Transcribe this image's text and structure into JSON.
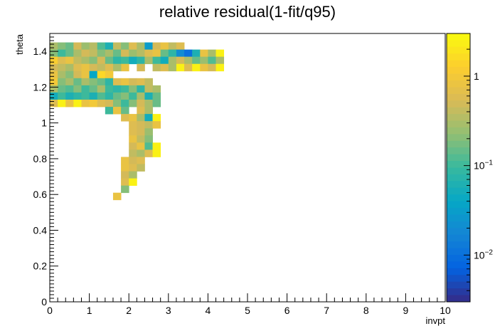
{
  "chart_data": {
    "type": "heatmap",
    "title": "relative residual(1-fit/q95)",
    "xlabel": "invpt",
    "ylabel": "theta",
    "xlim": [
      0,
      10
    ],
    "ylim": [
      0,
      1.5
    ],
    "x_ticks": [
      "0",
      "1",
      "2",
      "3",
      "4",
      "5",
      "6",
      "7",
      "8",
      "9",
      "10"
    ],
    "y_ticks": [
      "0",
      "0.2",
      "0.4",
      "0.6",
      "0.8",
      "1",
      "1.2",
      "1.4"
    ],
    "colorbar": {
      "scale": "log",
      "range": [
        0.003,
        3
      ],
      "ticks": [
        {
          "value": 1,
          "label": "1"
        },
        {
          "value": 0.1,
          "label": "10^-1"
        },
        {
          "value": 0.01,
          "label": "10^-2"
        }
      ],
      "palette": [
        "#352a87",
        "#0363e1",
        "#1485d4",
        "#06a7c6",
        "#38b99e",
        "#92bf73",
        "#d9ba56",
        "#fcce2e",
        "#f9fb0e"
      ]
    },
    "cells": [
      {
        "x": 0.1,
        "y": 1.43,
        "v": 0.3
      },
      {
        "x": 0.3,
        "y": 1.43,
        "v": 0.2
      },
      {
        "x": 0.5,
        "y": 1.43,
        "v": 0.15
      },
      {
        "x": 0.7,
        "y": 1.43,
        "v": 0.5
      },
      {
        "x": 0.9,
        "y": 1.43,
        "v": 0.25
      },
      {
        "x": 1.1,
        "y": 1.43,
        "v": 0.35
      },
      {
        "x": 1.3,
        "y": 1.43,
        "v": 0.12
      },
      {
        "x": 1.5,
        "y": 1.43,
        "v": 0.06
      },
      {
        "x": 1.7,
        "y": 1.43,
        "v": 0.4
      },
      {
        "x": 1.9,
        "y": 1.43,
        "v": 0.2
      },
      {
        "x": 2.1,
        "y": 1.43,
        "v": 0.6
      },
      {
        "x": 2.3,
        "y": 1.43,
        "v": 0.3
      },
      {
        "x": 2.5,
        "y": 1.43,
        "v": 0.03
      },
      {
        "x": 2.7,
        "y": 1.43,
        "v": 0.5
      },
      {
        "x": 2.9,
        "y": 1.43,
        "v": 0.8
      },
      {
        "x": 3.1,
        "y": 1.43,
        "v": 0.4
      },
      {
        "x": 3.3,
        "y": 1.43,
        "v": 0.6
      },
      {
        "x": 0.1,
        "y": 1.39,
        "v": 0.2
      },
      {
        "x": 0.3,
        "y": 1.39,
        "v": 0.1
      },
      {
        "x": 0.5,
        "y": 1.39,
        "v": 0.15
      },
      {
        "x": 0.7,
        "y": 1.39,
        "v": 0.3
      },
      {
        "x": 0.9,
        "y": 1.39,
        "v": 0.5
      },
      {
        "x": 1.1,
        "y": 1.39,
        "v": 0.4
      },
      {
        "x": 1.3,
        "y": 1.39,
        "v": 0.2
      },
      {
        "x": 1.5,
        "y": 1.39,
        "v": 0.3
      },
      {
        "x": 1.7,
        "y": 1.39,
        "v": 0.15
      },
      {
        "x": 1.9,
        "y": 1.39,
        "v": 0.5
      },
      {
        "x": 2.1,
        "y": 1.39,
        "v": 0.25
      },
      {
        "x": 2.3,
        "y": 1.39,
        "v": 0.35
      },
      {
        "x": 2.5,
        "y": 1.39,
        "v": 0.6
      },
      {
        "x": 2.7,
        "y": 1.39,
        "v": 0.8
      },
      {
        "x": 2.9,
        "y": 1.39,
        "v": 0.15
      },
      {
        "x": 3.1,
        "y": 1.39,
        "v": 0.08
      },
      {
        "x": 3.3,
        "y": 1.39,
        "v": 0.02
      },
      {
        "x": 3.5,
        "y": 1.39,
        "v": 0.01
      },
      {
        "x": 3.7,
        "y": 1.39,
        "v": 0.06
      },
      {
        "x": 3.9,
        "y": 1.39,
        "v": 0.8
      },
      {
        "x": 4.1,
        "y": 1.39,
        "v": 0.3
      },
      {
        "x": 4.3,
        "y": 1.39,
        "v": 2.5
      },
      {
        "x": 0.1,
        "y": 1.35,
        "v": 1.2
      },
      {
        "x": 0.3,
        "y": 1.35,
        "v": 0.6
      },
      {
        "x": 0.5,
        "y": 1.35,
        "v": 0.8
      },
      {
        "x": 0.7,
        "y": 1.35,
        "v": 0.4
      },
      {
        "x": 0.9,
        "y": 1.35,
        "v": 0.3
      },
      {
        "x": 1.1,
        "y": 1.35,
        "v": 0.2
      },
      {
        "x": 1.3,
        "y": 1.35,
        "v": 0.5
      },
      {
        "x": 1.5,
        "y": 1.35,
        "v": 0.15
      },
      {
        "x": 1.7,
        "y": 1.35,
        "v": 0.08
      },
      {
        "x": 1.9,
        "y": 1.35,
        "v": 0.1
      },
      {
        "x": 2.1,
        "y": 1.35,
        "v": 0.05
      },
      {
        "x": 2.3,
        "y": 1.35,
        "v": 0.08
      },
      {
        "x": 2.5,
        "y": 1.35,
        "v": 0.3
      },
      {
        "x": 2.7,
        "y": 1.35,
        "v": 0.1
      },
      {
        "x": 2.9,
        "y": 1.35,
        "v": 0.05
      },
      {
        "x": 3.1,
        "y": 1.35,
        "v": 0.3
      },
      {
        "x": 3.3,
        "y": 1.35,
        "v": 0.5
      },
      {
        "x": 3.5,
        "y": 1.35,
        "v": 0.3
      },
      {
        "x": 3.7,
        "y": 1.35,
        "v": 0.15
      },
      {
        "x": 3.9,
        "y": 1.35,
        "v": 0.25
      },
      {
        "x": 4.1,
        "y": 1.35,
        "v": 0.12
      },
      {
        "x": 4.3,
        "y": 1.35,
        "v": 0.3
      },
      {
        "x": 1.9,
        "y": 1.31,
        "v": 0.8
      },
      {
        "x": 2.3,
        "y": 1.31,
        "v": 0.5
      },
      {
        "x": 2.7,
        "y": 1.31,
        "v": 0.4
      },
      {
        "x": 2.9,
        "y": 1.31,
        "v": 0.6
      },
      {
        "x": 3.1,
        "y": 1.31,
        "v": 0.3
      },
      {
        "x": 3.3,
        "y": 1.31,
        "v": 2.5
      },
      {
        "x": 3.5,
        "y": 1.31,
        "v": 0.6
      },
      {
        "x": 3.7,
        "y": 1.31,
        "v": 2.5
      },
      {
        "x": 3.9,
        "y": 1.31,
        "v": 0.8
      },
      {
        "x": 4.1,
        "y": 1.31,
        "v": 0.5
      },
      {
        "x": 4.3,
        "y": 1.31,
        "v": 2.5
      },
      {
        "x": 0.1,
        "y": 1.31,
        "v": 0.5
      },
      {
        "x": 0.3,
        "y": 1.31,
        "v": 0.4
      },
      {
        "x": 0.5,
        "y": 1.31,
        "v": 0.3
      },
      {
        "x": 0.7,
        "y": 1.31,
        "v": 0.6
      },
      {
        "x": 0.9,
        "y": 1.31,
        "v": 0.8
      },
      {
        "x": 1.1,
        "y": 1.31,
        "v": 0.5
      },
      {
        "x": 1.3,
        "y": 1.31,
        "v": 0.4
      },
      {
        "x": 1.5,
        "y": 1.31,
        "v": 0.6
      },
      {
        "x": 1.7,
        "y": 1.31,
        "v": 0.3
      },
      {
        "x": 0.1,
        "y": 1.27,
        "v": 0.8
      },
      {
        "x": 0.3,
        "y": 1.27,
        "v": 0.3
      },
      {
        "x": 0.5,
        "y": 1.27,
        "v": 0.2
      },
      {
        "x": 0.7,
        "y": 1.27,
        "v": 0.5
      },
      {
        "x": 0.9,
        "y": 1.27,
        "v": 0.8
      },
      {
        "x": 1.1,
        "y": 1.27,
        "v": 0.04
      },
      {
        "x": 1.3,
        "y": 1.27,
        "v": 1.5
      },
      {
        "x": 1.5,
        "y": 1.27,
        "v": 1.0
      },
      {
        "x": 0.1,
        "y": 1.23,
        "v": 1.0
      },
      {
        "x": 0.3,
        "y": 1.23,
        "v": 0.2
      },
      {
        "x": 0.5,
        "y": 1.23,
        "v": 0.3
      },
      {
        "x": 0.7,
        "y": 1.23,
        "v": 0.15
      },
      {
        "x": 0.9,
        "y": 1.23,
        "v": 0.3
      },
      {
        "x": 1.1,
        "y": 1.23,
        "v": 0.2
      },
      {
        "x": 1.3,
        "y": 1.23,
        "v": 0.15
      },
      {
        "x": 1.5,
        "y": 1.23,
        "v": 0.08
      },
      {
        "x": 1.7,
        "y": 1.23,
        "v": 0.6
      },
      {
        "x": 1.9,
        "y": 1.23,
        "v": 0.8
      },
      {
        "x": 2.1,
        "y": 1.23,
        "v": 0.5
      },
      {
        "x": 2.3,
        "y": 1.23,
        "v": 0.6
      },
      {
        "x": 2.5,
        "y": 1.23,
        "v": 0.4
      },
      {
        "x": 0.1,
        "y": 1.19,
        "v": 0.3
      },
      {
        "x": 0.3,
        "y": 1.19,
        "v": 0.15
      },
      {
        "x": 0.5,
        "y": 1.19,
        "v": 0.12
      },
      {
        "x": 0.7,
        "y": 1.19,
        "v": 0.2
      },
      {
        "x": 0.9,
        "y": 1.19,
        "v": 0.1
      },
      {
        "x": 1.1,
        "y": 1.19,
        "v": 0.15
      },
      {
        "x": 1.3,
        "y": 1.19,
        "v": 0.3
      },
      {
        "x": 1.5,
        "y": 1.19,
        "v": 0.1
      },
      {
        "x": 1.7,
        "y": 1.19,
        "v": 0.08
      },
      {
        "x": 1.9,
        "y": 1.19,
        "v": 0.1
      },
      {
        "x": 2.1,
        "y": 1.19,
        "v": 0.2
      },
      {
        "x": 2.3,
        "y": 1.19,
        "v": 0.08
      },
      {
        "x": 2.5,
        "y": 1.19,
        "v": 0.4
      },
      {
        "x": 2.7,
        "y": 1.19,
        "v": 0.3
      },
      {
        "x": 0.1,
        "y": 1.15,
        "v": 0.05
      },
      {
        "x": 0.3,
        "y": 1.15,
        "v": 0.1
      },
      {
        "x": 0.5,
        "y": 1.15,
        "v": 0.06
      },
      {
        "x": 0.7,
        "y": 1.15,
        "v": 0.08
      },
      {
        "x": 0.9,
        "y": 1.15,
        "v": 0.1
      },
      {
        "x": 1.1,
        "y": 1.15,
        "v": 0.06
      },
      {
        "x": 1.3,
        "y": 1.15,
        "v": 0.12
      },
      {
        "x": 1.5,
        "y": 1.15,
        "v": 0.08
      },
      {
        "x": 1.7,
        "y": 1.15,
        "v": 0.15
      },
      {
        "x": 1.9,
        "y": 1.15,
        "v": 0.2
      },
      {
        "x": 2.1,
        "y": 1.15,
        "v": 0.1
      },
      {
        "x": 2.3,
        "y": 1.15,
        "v": 0.3
      },
      {
        "x": 2.5,
        "y": 1.15,
        "v": 0.06
      },
      {
        "x": 2.7,
        "y": 1.15,
        "v": 0.15
      },
      {
        "x": 0.1,
        "y": 1.11,
        "v": 0.6
      },
      {
        "x": 0.3,
        "y": 1.11,
        "v": 2.5
      },
      {
        "x": 0.5,
        "y": 1.11,
        "v": 0.8
      },
      {
        "x": 0.7,
        "y": 1.11,
        "v": 2.5
      },
      {
        "x": 0.9,
        "y": 1.11,
        "v": 0.8
      },
      {
        "x": 1.1,
        "y": 1.11,
        "v": 1.0
      },
      {
        "x": 1.3,
        "y": 1.11,
        "v": 0.6
      },
      {
        "x": 1.5,
        "y": 1.11,
        "v": 0.5
      },
      {
        "x": 1.7,
        "y": 1.11,
        "v": 0.2
      },
      {
        "x": 1.9,
        "y": 1.11,
        "v": 0.1
      },
      {
        "x": 2.1,
        "y": 1.11,
        "v": 0.2
      },
      {
        "x": 2.3,
        "y": 1.11,
        "v": 0.5
      },
      {
        "x": 2.5,
        "y": 1.11,
        "v": 0.3
      },
      {
        "x": 2.7,
        "y": 1.11,
        "v": 0.15
      },
      {
        "x": 1.5,
        "y": 1.07,
        "v": 0.1
      },
      {
        "x": 1.7,
        "y": 1.07,
        "v": 0.8
      },
      {
        "x": 1.9,
        "y": 1.07,
        "v": 0.15
      },
      {
        "x": 2.3,
        "y": 1.07,
        "v": 0.6
      },
      {
        "x": 2.5,
        "y": 1.07,
        "v": 0.3
      },
      {
        "x": 1.9,
        "y": 1.03,
        "v": 0.6
      },
      {
        "x": 2.1,
        "y": 1.03,
        "v": 0.8
      },
      {
        "x": 2.3,
        "y": 1.03,
        "v": 0.3
      },
      {
        "x": 2.5,
        "y": 1.03,
        "v": 0.05
      },
      {
        "x": 2.7,
        "y": 1.03,
        "v": 2.5
      },
      {
        "x": 2.1,
        "y": 0.99,
        "v": 0.6
      },
      {
        "x": 2.3,
        "y": 0.99,
        "v": 0.5
      },
      {
        "x": 2.5,
        "y": 0.99,
        "v": 0.4
      },
      {
        "x": 2.7,
        "y": 0.99,
        "v": 0.8
      },
      {
        "x": 2.1,
        "y": 0.95,
        "v": 0.6
      },
      {
        "x": 2.3,
        "y": 0.95,
        "v": 0.5
      },
      {
        "x": 2.5,
        "y": 0.95,
        "v": 0.25
      },
      {
        "x": 2.1,
        "y": 0.91,
        "v": 0.8
      },
      {
        "x": 2.3,
        "y": 0.91,
        "v": 0.4
      },
      {
        "x": 2.5,
        "y": 0.91,
        "v": 0.2
      },
      {
        "x": 2.1,
        "y": 0.87,
        "v": 0.5
      },
      {
        "x": 2.3,
        "y": 0.87,
        "v": 0.8
      },
      {
        "x": 2.5,
        "y": 0.87,
        "v": 0.12
      },
      {
        "x": 2.7,
        "y": 0.87,
        "v": 2.5
      },
      {
        "x": 2.1,
        "y": 0.83,
        "v": 0.4
      },
      {
        "x": 2.3,
        "y": 0.83,
        "v": 0.3
      },
      {
        "x": 2.5,
        "y": 0.83,
        "v": 0.6
      },
      {
        "x": 2.7,
        "y": 0.83,
        "v": 2.5
      },
      {
        "x": 1.9,
        "y": 0.79,
        "v": 0.8
      },
      {
        "x": 2.1,
        "y": 0.79,
        "v": 0.5
      },
      {
        "x": 2.3,
        "y": 0.79,
        "v": 0.6
      },
      {
        "x": 1.9,
        "y": 0.75,
        "v": 0.8
      },
      {
        "x": 2.1,
        "y": 0.75,
        "v": 0.6
      },
      {
        "x": 2.3,
        "y": 0.75,
        "v": 0.4
      },
      {
        "x": 1.9,
        "y": 0.71,
        "v": 0.5
      },
      {
        "x": 2.1,
        "y": 0.71,
        "v": 0.3
      },
      {
        "x": 1.9,
        "y": 0.67,
        "v": 0.6
      },
      {
        "x": 2.1,
        "y": 0.67,
        "v": 2.5
      },
      {
        "x": 1.9,
        "y": 0.63,
        "v": 0.2
      },
      {
        "x": 1.7,
        "y": 0.59,
        "v": 0.8
      }
    ]
  }
}
